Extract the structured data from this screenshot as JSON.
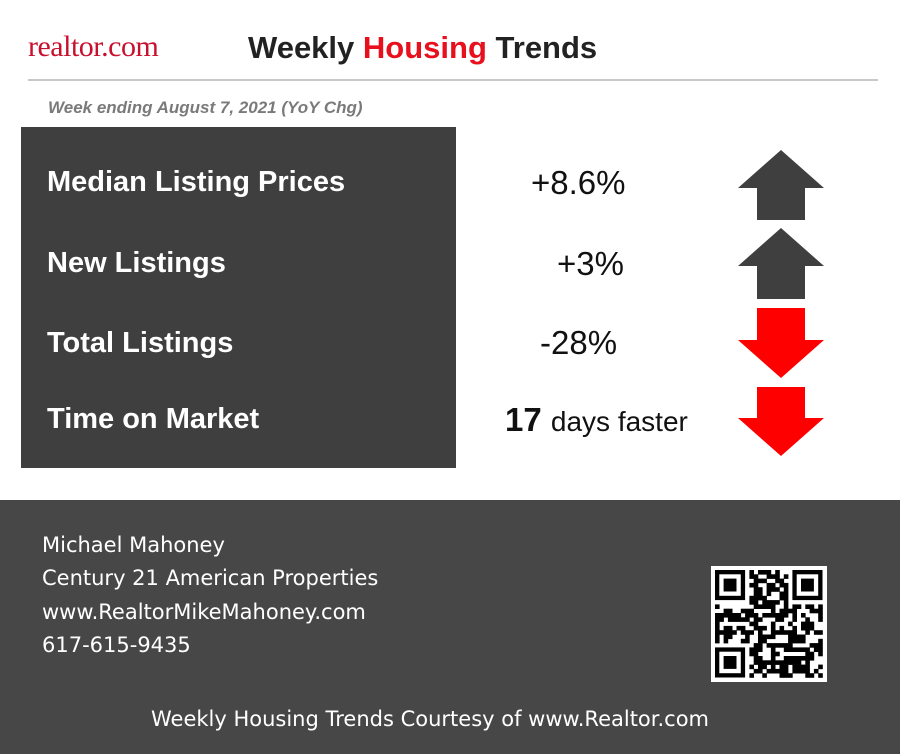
{
  "header": {
    "logo": "realtor.com",
    "title": {
      "before": "Weekly",
      "highlight": "Housing",
      "after": "Trends"
    },
    "subtitle": "Week ending August 7, 2021 (YoY Chg)"
  },
  "metrics": [
    {
      "label": "Median Listing Prices",
      "value": "+8.6%"
    },
    {
      "label": "New Listings",
      "value": "+3%"
    },
    {
      "label": "Total Listings",
      "value": "-28%"
    },
    {
      "label": "Time on Market",
      "value": "17",
      "unit": "days faster"
    }
  ],
  "contact": {
    "name": "Michael Mahoney",
    "company": "Century 21 American Properties",
    "website": "www.RealtorMikeMahoney.com",
    "phone": "617-615-9435"
  },
  "credit": "Weekly Housing Trends Courtesy of www.Realtor.com"
}
